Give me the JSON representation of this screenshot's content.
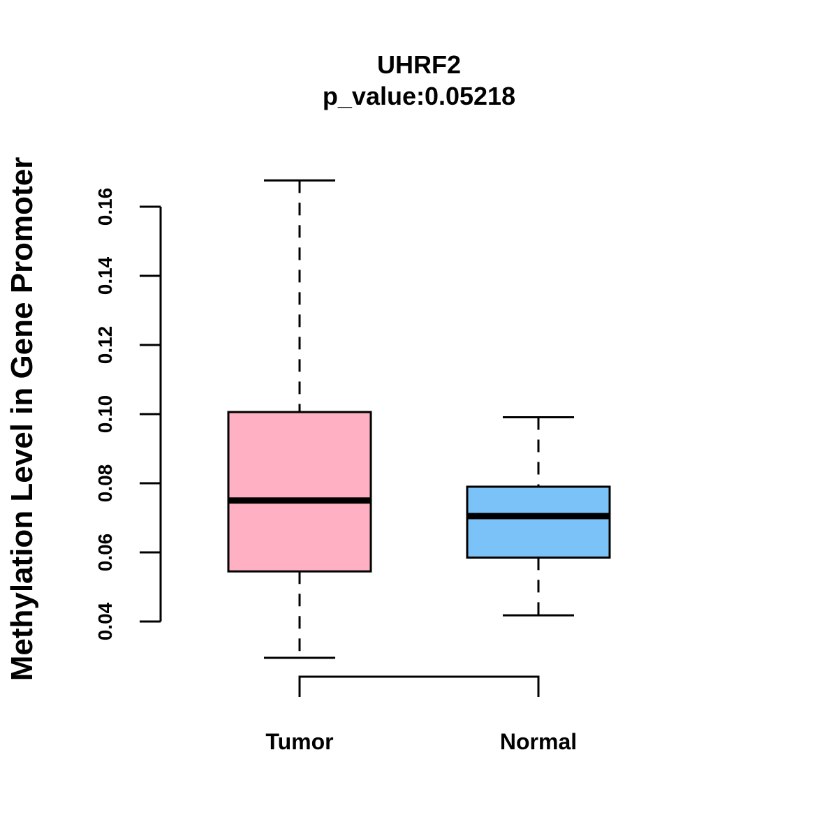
{
  "chart_data": {
    "type": "boxplot",
    "title": "UHRF2",
    "subtitle": "p_value:0.05218",
    "ylabel": "Methylation Level in Gene Promoter",
    "xlabel": "",
    "ylim": [
      0.04,
      0.16
    ],
    "yticks": [
      "0.04",
      "0.06",
      "0.08",
      "0.10",
      "0.12",
      "0.14",
      "0.16"
    ],
    "categories": [
      "Tumor",
      "Normal"
    ],
    "series": [
      {
        "name": "Tumor",
        "whisker_low": 0.0295,
        "q1": 0.0545,
        "median": 0.075,
        "q3": 0.1006,
        "whisker_high": 0.1676,
        "color": "#FFB0C2"
      },
      {
        "name": "Normal",
        "whisker_low": 0.0418,
        "q1": 0.0585,
        "median": 0.0705,
        "q3": 0.079,
        "whisker_high": 0.0991,
        "color": "#7AC2F8"
      }
    ],
    "comparison_bracket": [
      "Tumor",
      "Normal"
    ]
  }
}
